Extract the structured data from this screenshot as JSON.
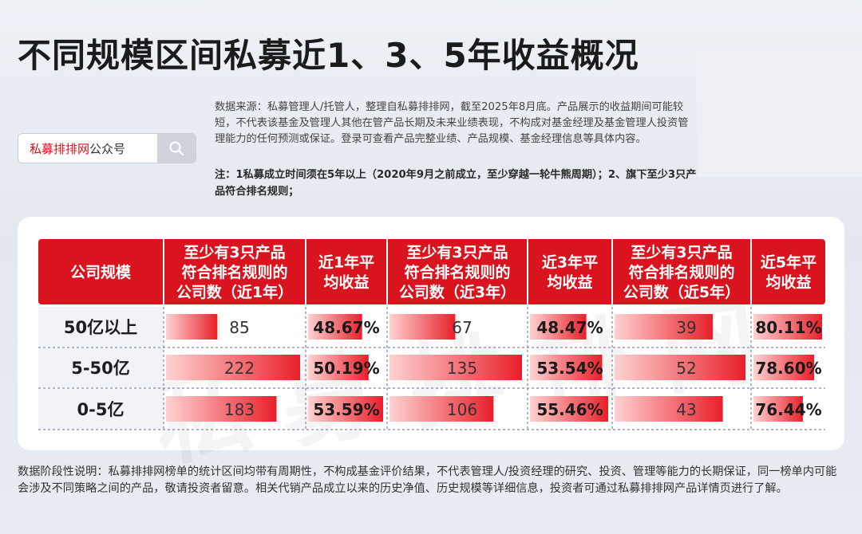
{
  "title": "不同规模区间私募近1、3、5年收益概况",
  "search": {
    "brand": "私募排排网",
    "suffix": "公众号",
    "icon": "search-icon"
  },
  "source_text": "数据来源：私募管理人/托管人，整理自私募排排网，截至2025年8月底。产品展示的收益期间可能较短，不代表该基金及管理人其他在管产品长期及未来业绩表现，不构成对基金经理及基金管理人投资管理能力的任何预测或保证。登录可查看产品完整业绩、产品规模、基金经理信息等具体内容。",
  "note_text": "注：1私募成立时间须在5年以上（2020年9月之前成立，至少穿越一轮牛熊周期）；2、旗下至少3只产品符合排名规则；",
  "watermark": "私募排排网",
  "footer_text": "数据阶段性说明：私募排排网榜单的统计区间均带有周期性，不构成基金评价结果，不代表管理人/投资经理的研究、投资、管理等能力的长期保证，同一榜单内可能会涉及不同策略之间的产品，敬请投资者留意。相关代销产品成立以来的历史净值、历史规模等详细信息，投资者可通过私募排排网产品详情页进行了解。",
  "colors": {
    "header": "#d9141e",
    "bar_light": "#ffd2d2",
    "bar_dark": "#e8202a",
    "row_label_bg": "#f1f3f8"
  },
  "chart_data": {
    "type": "table",
    "headers": [
      "公司规模",
      "至少有3只产品符合排名规则的公司数（近1年）",
      "近1年平均收益",
      "至少有3只产品符合排名规则的公司数（近3年）",
      "近3年平均收益",
      "至少有3只产品符合排名规则的公司数（近5年）",
      "近5年平均收益"
    ],
    "header_lines": [
      [
        "公司规模"
      ],
      [
        "至少有3只产品",
        "符合排名规则的",
        "公司数（近1年）"
      ],
      [
        "近1年平",
        "均收益"
      ],
      [
        "至少有3只产品",
        "符合排名规则的",
        "公司数（近3年）"
      ],
      [
        "近3年平",
        "均收益"
      ],
      [
        "至少有3只产品",
        "符合排名规则的",
        "公司数（近5年）"
      ],
      [
        "近5年平",
        "均收益"
      ]
    ],
    "rows": [
      {
        "label": "50亿以上",
        "count_1y": 85,
        "return_1y": "48.67%",
        "count_3y": 67,
        "return_3y": "48.47%",
        "count_5y": 39,
        "return_5y": "80.11%"
      },
      {
        "label": "5-50亿",
        "count_1y": 222,
        "return_1y": "50.19%",
        "count_3y": 135,
        "return_3y": "53.54%",
        "count_5y": 52,
        "return_5y": "78.60%"
      },
      {
        "label": "0-5亿",
        "count_1y": 183,
        "return_1y": "53.59%",
        "count_3y": 106,
        "return_3y": "55.46%",
        "count_5y": 43,
        "return_5y": "76.44%"
      }
    ],
    "series": [
      {
        "name": "公司数（近1年）",
        "values": [
          85,
          222,
          183
        ]
      },
      {
        "name": "近1年平均收益",
        "values": [
          48.67,
          50.19,
          53.59
        ]
      },
      {
        "name": "公司数（近3年）",
        "values": [
          67,
          135,
          106
        ]
      },
      {
        "name": "近3年平均收益",
        "values": [
          48.47,
          53.54,
          55.46
        ]
      },
      {
        "name": "公司数（近5年）",
        "values": [
          39,
          52,
          43
        ]
      },
      {
        "name": "近5年平均收益",
        "values": [
          80.11,
          78.6,
          76.44
        ]
      }
    ]
  }
}
